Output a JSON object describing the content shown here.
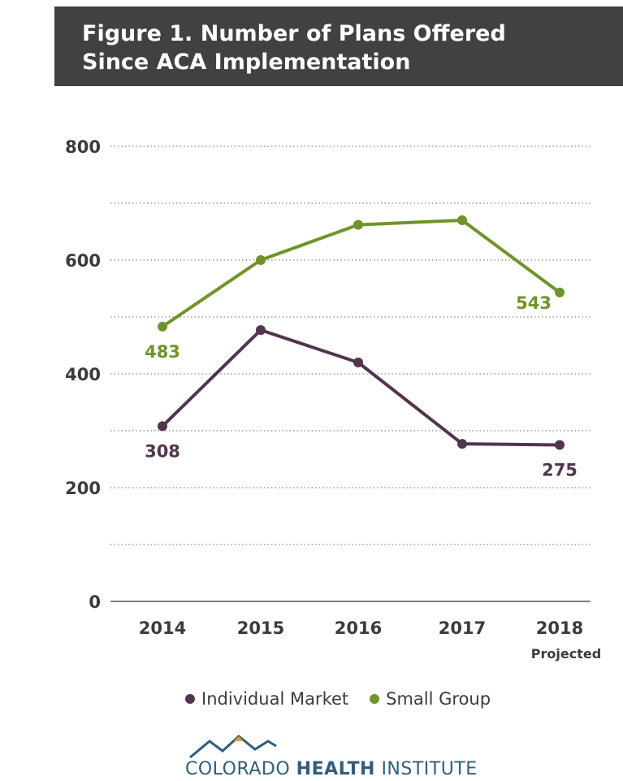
{
  "title": {
    "line1": "Figure 1. Number of Plans Offered",
    "line2": "Since ACA Implementation"
  },
  "chart_data": {
    "type": "line",
    "categories": [
      "2014",
      "2015",
      "2016",
      "2017",
      "2018"
    ],
    "category_sublabels": [
      "",
      "",
      "",
      "",
      "Projected"
    ],
    "ylim": [
      0,
      800
    ],
    "yticks": [
      0,
      200,
      400,
      600,
      800
    ],
    "grid": true,
    "legend_position": "bottom",
    "series": [
      {
        "name": "Individual Market",
        "color": "#52344e",
        "values": [
          308,
          477,
          420,
          277,
          275
        ],
        "data_labels": [
          "308",
          "",
          "",
          "",
          "275"
        ]
      },
      {
        "name": "Small Group",
        "color": "#6f942a",
        "values": [
          483,
          600,
          662,
          670,
          543
        ],
        "data_labels": [
          "483",
          "",
          "",
          "",
          "543"
        ]
      }
    ]
  },
  "legend": {
    "items": [
      {
        "label": "Individual Market",
        "color": "#52344e"
      },
      {
        "label": "Small Group",
        "color": "#6f942a"
      }
    ]
  },
  "logo": {
    "word1": "COLORADO",
    "word2": "HEALTH",
    "word3": "INSTITUTE"
  }
}
